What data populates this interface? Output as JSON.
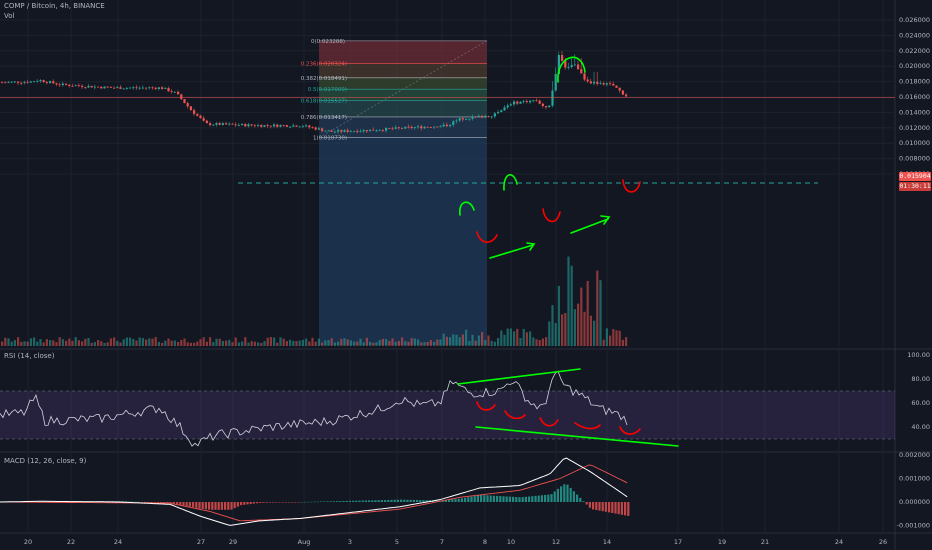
{
  "header": {
    "symbol_line": "COMP / Bitcoin, 4h, BINANCE",
    "volume_label": "Vol"
  },
  "rsi_legend": "RSI (14, close)",
  "macd_legend": "MACD (12, 26, close, 9)",
  "price_axis": [
    "0.026000",
    "0.024000",
    "0.022000",
    "0.020000",
    "0.018000",
    "0.016000",
    "0.014000",
    "0.012000",
    "0.010000",
    "0.008000",
    "0.006000"
  ],
  "current_price": "0.015904",
  "countdown": "01:30:11",
  "rsi_axis": [
    "100.00",
    "80.00",
    "60.00",
    "40.00"
  ],
  "macd_axis": [
    "0.002000",
    "0.001000",
    "0.000000",
    "-0.001000"
  ],
  "time_axis": [
    "20",
    "22",
    "24",
    "27",
    "29",
    "Aug",
    "3",
    "5",
    "7",
    "8",
    "10",
    "12",
    "14",
    "17",
    "19",
    "21",
    "24",
    "26"
  ],
  "fib_levels": [
    {
      "label": "0(0.023288)",
      "price": 0.023288
    },
    {
      "label": "0.236(0.020324)",
      "price": 0.020324
    },
    {
      "label": "0.382(0.018491)",
      "price": 0.018491
    },
    {
      "label": "0.5(0.017009)",
      "price": 0.017009
    },
    {
      "label": "0.618(0.015527)",
      "price": 0.015527
    },
    {
      "label": "0.786(0.013417)",
      "price": 0.013417
    },
    {
      "label": "1(0.010730)",
      "price": 0.01073
    }
  ],
  "colors": {
    "up": "#26a69a",
    "down": "#ef5350",
    "accent_green": "#00ff00",
    "accent_red": "#ff0000",
    "rsi_band": "#7e57c2",
    "macd_line": "#ffffff",
    "signal_line": "#ef5350"
  }
}
